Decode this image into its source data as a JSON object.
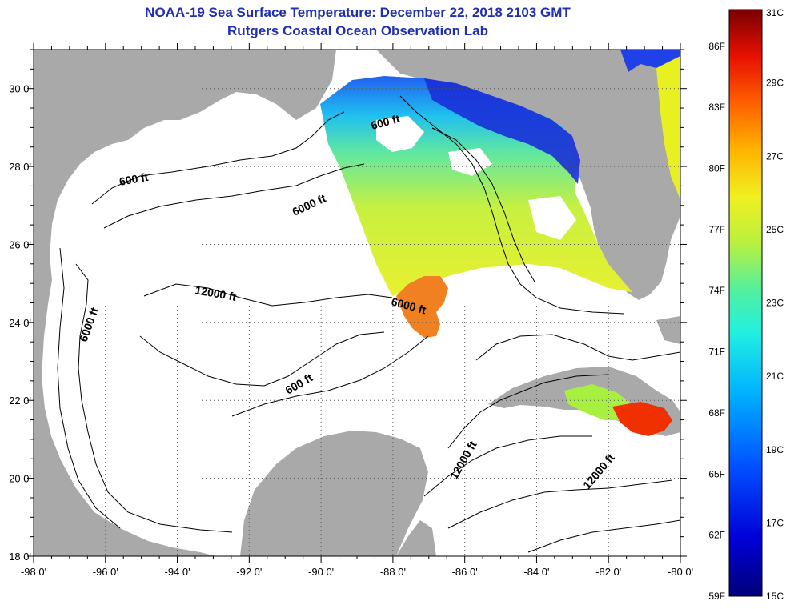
{
  "title": "NOAA-19 Sea Surface Temperature:  December 22, 2018 2103 GMT",
  "subtitle": "Rutgers Coastal Ocean Observation Lab",
  "colors": {
    "land": "#a9a9a9",
    "ocean": "#ffffff",
    "title": "#1f2fb0",
    "contour": "#000000"
  },
  "axes": {
    "lon_labels": [
      "-98 0'",
      "-96 0'",
      "-94 0'",
      "-92 0'",
      "-90 0'",
      "-88 0'",
      "-86 0'",
      "-84 0'",
      "-82 0'",
      "-80 0'"
    ],
    "lat_labels": [
      "30 0'",
      "28 0'",
      "26 0'",
      "24 0'",
      "22 0'",
      "20 0'",
      "18 0'"
    ],
    "lon_range": [
      -98,
      -80
    ],
    "lat_range": [
      18,
      31
    ]
  },
  "contour_labels": [
    "600 ft",
    "600 ft",
    "6000 ft",
    "12000 ft",
    "6000 ft",
    "6000 ft",
    "600 ft",
    "12000 ft",
    "12000 ft"
  ],
  "colorbar": {
    "fahrenheit": [
      "86F",
      "83F",
      "80F",
      "77F",
      "74F",
      "71F",
      "68F",
      "65F",
      "62F",
      "59F"
    ],
    "celsius": [
      "31C",
      "29C",
      "27C",
      "25C",
      "23C",
      "21C",
      "19C",
      "17C",
      "15C"
    ],
    "range_c": [
      15,
      31
    ]
  }
}
